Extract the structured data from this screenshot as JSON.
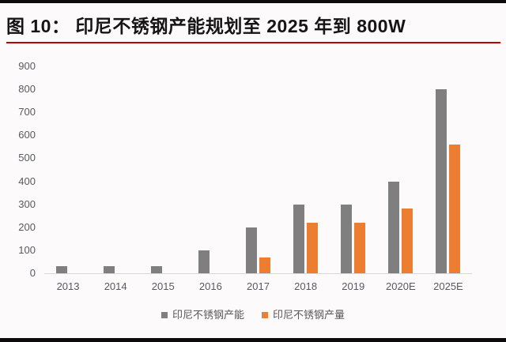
{
  "page": {
    "top_bar_color": "#0c0c0c",
    "bottom_bar_color": "#0c0c0c",
    "background": "#fcfafb"
  },
  "figure": {
    "title": "图 10：  印尼不锈钢产能规划至 2025 年到 800W",
    "rule_color": "#c00000"
  },
  "chart_data": {
    "type": "bar",
    "title": "印尼不锈钢产能规划至 2025 年到 800W",
    "categories": [
      "2013",
      "2014",
      "2015",
      "2016",
      "2017",
      "2018",
      "2019",
      "2020E",
      "2025E"
    ],
    "series": [
      {
        "name": "印尼不锈钢产能",
        "color": "#7f7f7f",
        "values": [
          30,
          30,
          30,
          100,
          200,
          300,
          300,
          400,
          800
        ]
      },
      {
        "name": "印尼不锈钢产量",
        "color": "#ed7d31",
        "values": [
          0,
          0,
          0,
          0,
          70,
          220,
          220,
          280,
          560
        ]
      }
    ],
    "xlabel": "",
    "ylabel": "",
    "ylim": [
      0,
      900
    ],
    "yticks": [
      0,
      100,
      200,
      300,
      400,
      500,
      600,
      700,
      800,
      900
    ],
    "grid": false,
    "legend_position": "bottom",
    "axis_label_color": "#595a5f",
    "axis_line_color": "#d8d8d8"
  }
}
